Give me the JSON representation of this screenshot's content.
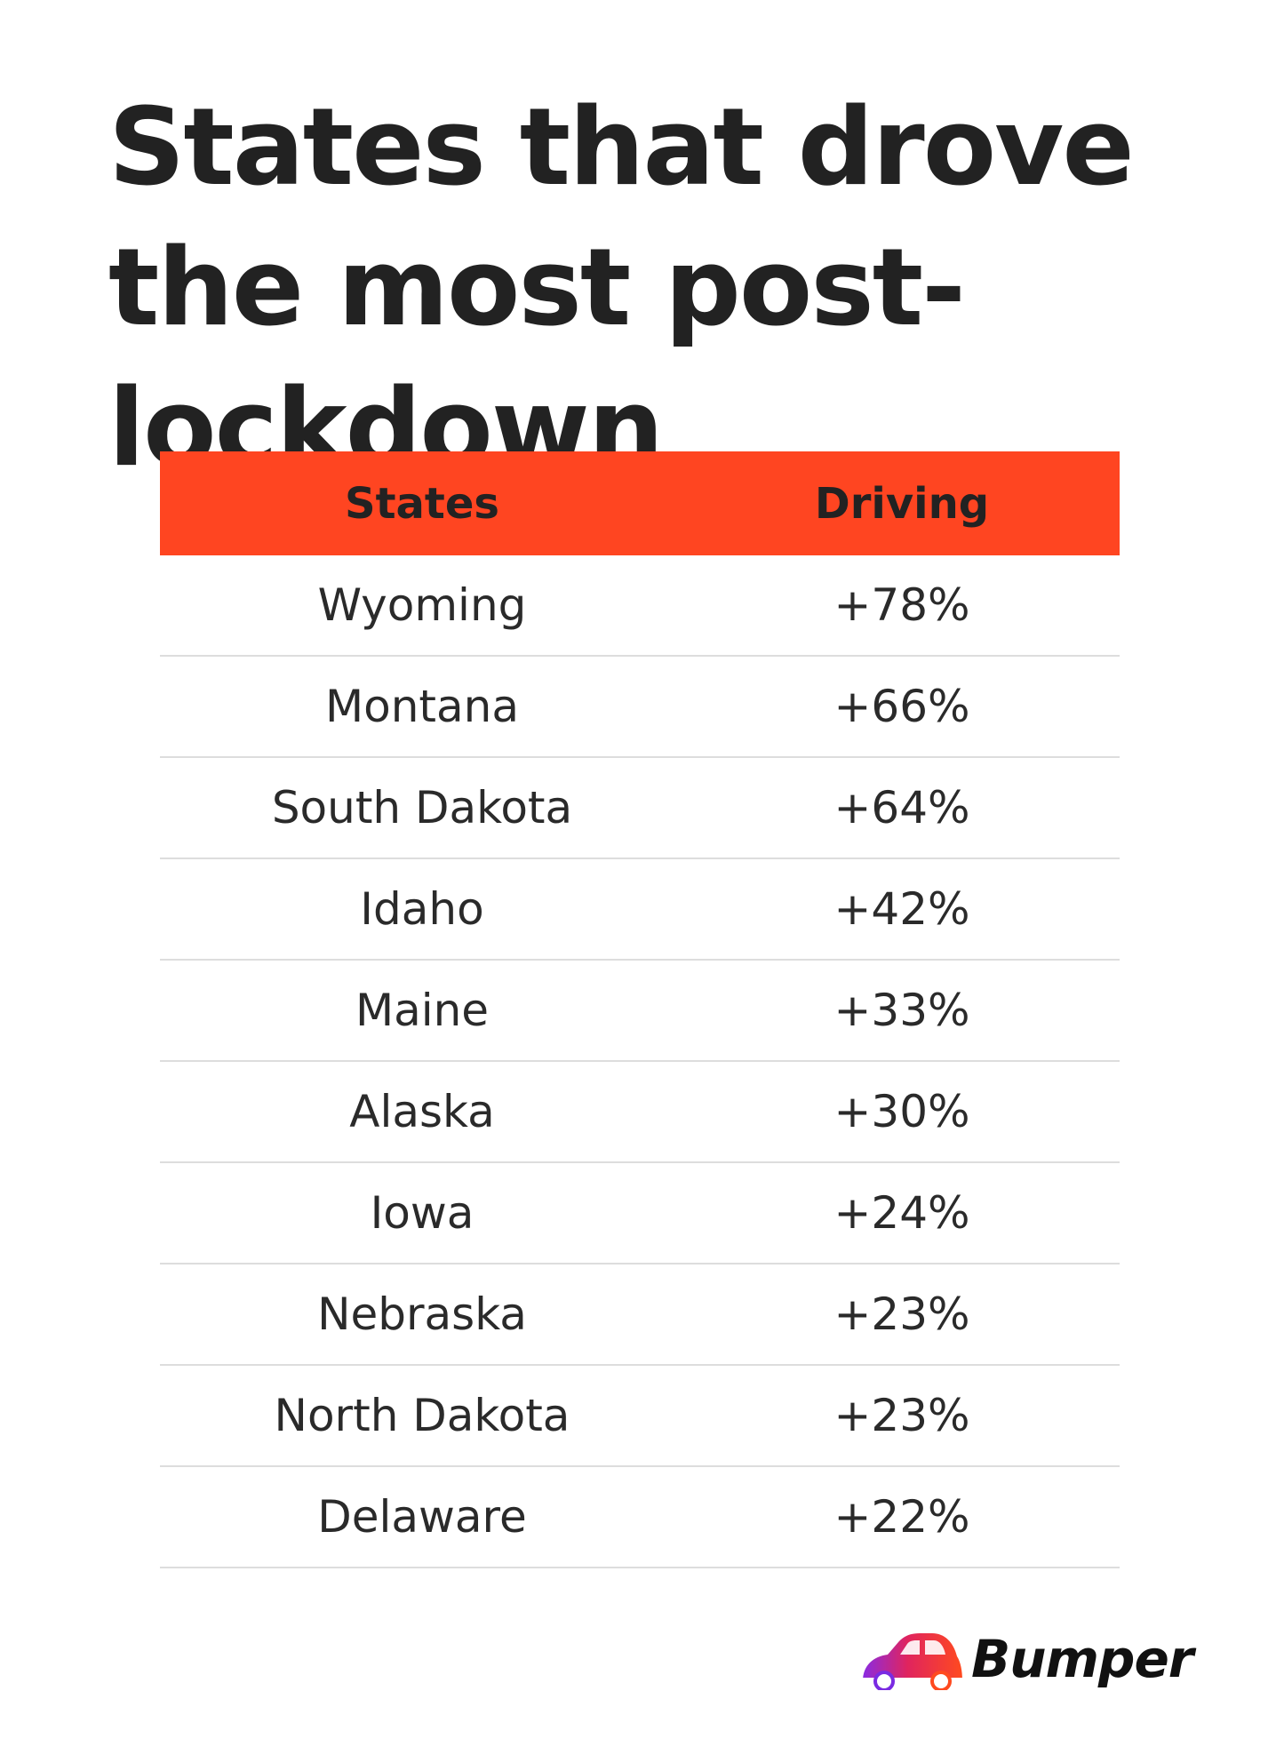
{
  "chart_data": {
    "type": "table",
    "title": "States that drove the most post-lockdown",
    "columns": [
      "States",
      "Driving"
    ],
    "rows": [
      {
        "state": "Wyoming",
        "driving": "+78%"
      },
      {
        "state": "Montana",
        "driving": "+66%"
      },
      {
        "state": "South Dakota",
        "driving": "+64%"
      },
      {
        "state": "Idaho",
        "driving": "+42%"
      },
      {
        "state": "Maine",
        "driving": "+33%"
      },
      {
        "state": "Alaska",
        "driving": "+30%"
      },
      {
        "state": "Iowa",
        "driving": "+24%"
      },
      {
        "state": "Nebraska",
        "driving": "+23%"
      },
      {
        "state": "North Dakota",
        "driving": "+23%"
      },
      {
        "state": "Delaware",
        "driving": "+22%"
      }
    ]
  },
  "brand": {
    "name": "Bumper",
    "icon": "car-icon"
  },
  "colors": {
    "header_bg": "#ff4521",
    "text": "#222222",
    "divider": "#dddddd"
  }
}
